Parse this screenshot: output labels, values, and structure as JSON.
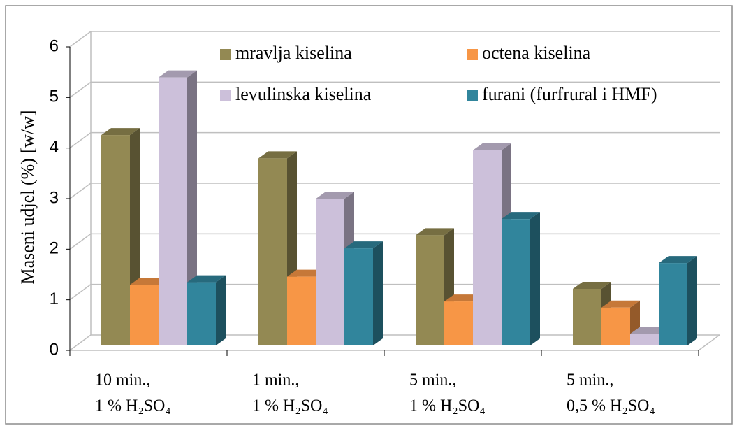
{
  "chart_data": {
    "type": "bar3d",
    "y_label": "Maseni udjel (%) [w/w]",
    "categories": [
      [
        "10 min.,",
        "1 % H₂SO₄"
      ],
      [
        "1 min.,",
        "1 % H₂SO₄"
      ],
      [
        "5 min.,",
        "1 % H₂SO₄"
      ],
      [
        "5 min.,",
        "0,5 % H₂SO₄"
      ]
    ],
    "series": [
      {
        "name": "mravlja kiselina",
        "color": "#938953",
        "values": [
          4.16,
          3.7,
          2.18,
          1.12
        ]
      },
      {
        "name": "octena kiselina",
        "color": "#f79646",
        "values": [
          1.2,
          1.36,
          0.87,
          0.75
        ]
      },
      {
        "name": "levulinska kiselina",
        "color": "#ccc0da",
        "values": [
          5.3,
          2.9,
          3.86,
          0.23
        ]
      },
      {
        "name": "furani (furfrural i HMF)",
        "color": "#31859c",
        "values": [
          1.25,
          1.92,
          2.5,
          1.63
        ]
      }
    ],
    "ylim": [
      0,
      6
    ],
    "yticks": [
      0,
      1,
      2,
      3,
      4,
      5,
      6
    ],
    "grid": true
  }
}
